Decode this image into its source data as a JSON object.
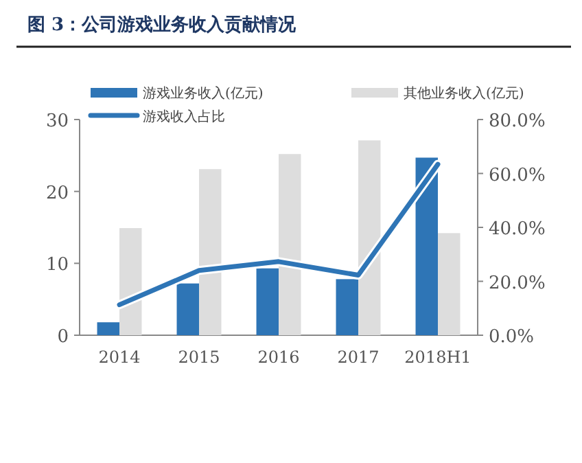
{
  "chart_data": {
    "type": "bar",
    "title": "图 3：公司游戏业务收入贡献情况",
    "categories": [
      "2014",
      "2015",
      "2016",
      "2017",
      "2018H1"
    ],
    "series": [
      {
        "name": "游戏业务收入(亿元)",
        "color": "#2e75b6",
        "values": [
          1.8,
          7.2,
          9.3,
          7.8,
          24.7
        ]
      },
      {
        "name": "其他业务收入(亿元)",
        "color": "#dddddd",
        "values": [
          14.9,
          23.1,
          25.2,
          27.1,
          14.2
        ]
      },
      {
        "name": "游戏收入占比",
        "type": "line",
        "axis": "y2",
        "color": "#2e75b6",
        "values": [
          11.3,
          24.0,
          27.3,
          22.3,
          63.4
        ]
      }
    ],
    "ylim": [
      0,
      30
    ],
    "yticks": [
      0,
      10,
      20,
      30
    ],
    "y2lim": [
      0,
      80
    ],
    "y2ticks": [
      {
        "value": 0,
        "label": "0.0%"
      },
      {
        "value": 20,
        "label": "20.0%"
      },
      {
        "value": 40,
        "label": "40.0%"
      },
      {
        "value": 60,
        "label": "60.0%"
      },
      {
        "value": 80,
        "label": "80.0%"
      }
    ],
    "legend": "top",
    "grid": false,
    "marker": "none",
    "line_style": "solid"
  }
}
